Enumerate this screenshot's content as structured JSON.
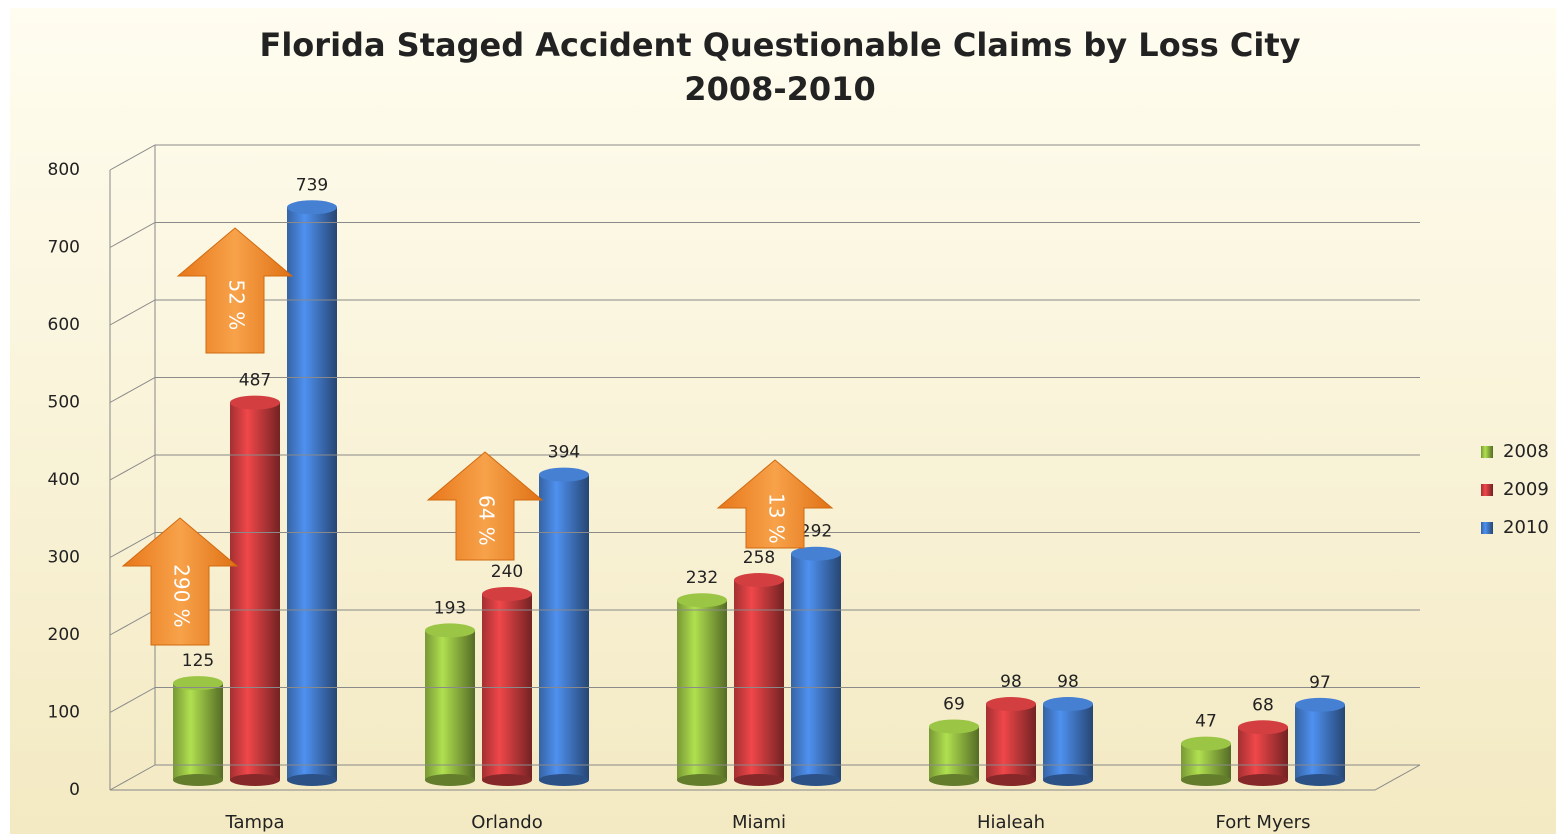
{
  "chart_data": {
    "type": "bar",
    "title": "Florida Staged Accident Questionable Claims by Loss City",
    "subtitle": "2008-2010",
    "categories": [
      "Tampa",
      "Orlando",
      "Miami",
      "Hialeah",
      "Fort Myers"
    ],
    "series": [
      {
        "name": "2008",
        "color": "#8db33f",
        "values": [
          125,
          193,
          232,
          69,
          47
        ]
      },
      {
        "name": "2009",
        "color": "#c0393b",
        "values": [
          487,
          240,
          258,
          98,
          68
        ]
      },
      {
        "name": "2010",
        "color": "#3f74c0",
        "values": [
          739,
          394,
          292,
          98,
          97
        ]
      }
    ],
    "ylim": [
      0,
      800
    ],
    "yticks": [
      0,
      100,
      200,
      300,
      400,
      500,
      600,
      700,
      800
    ],
    "grid": true,
    "legend": "right",
    "annotations": [
      "290 %",
      "52 %",
      "64 %",
      "13 %"
    ]
  }
}
